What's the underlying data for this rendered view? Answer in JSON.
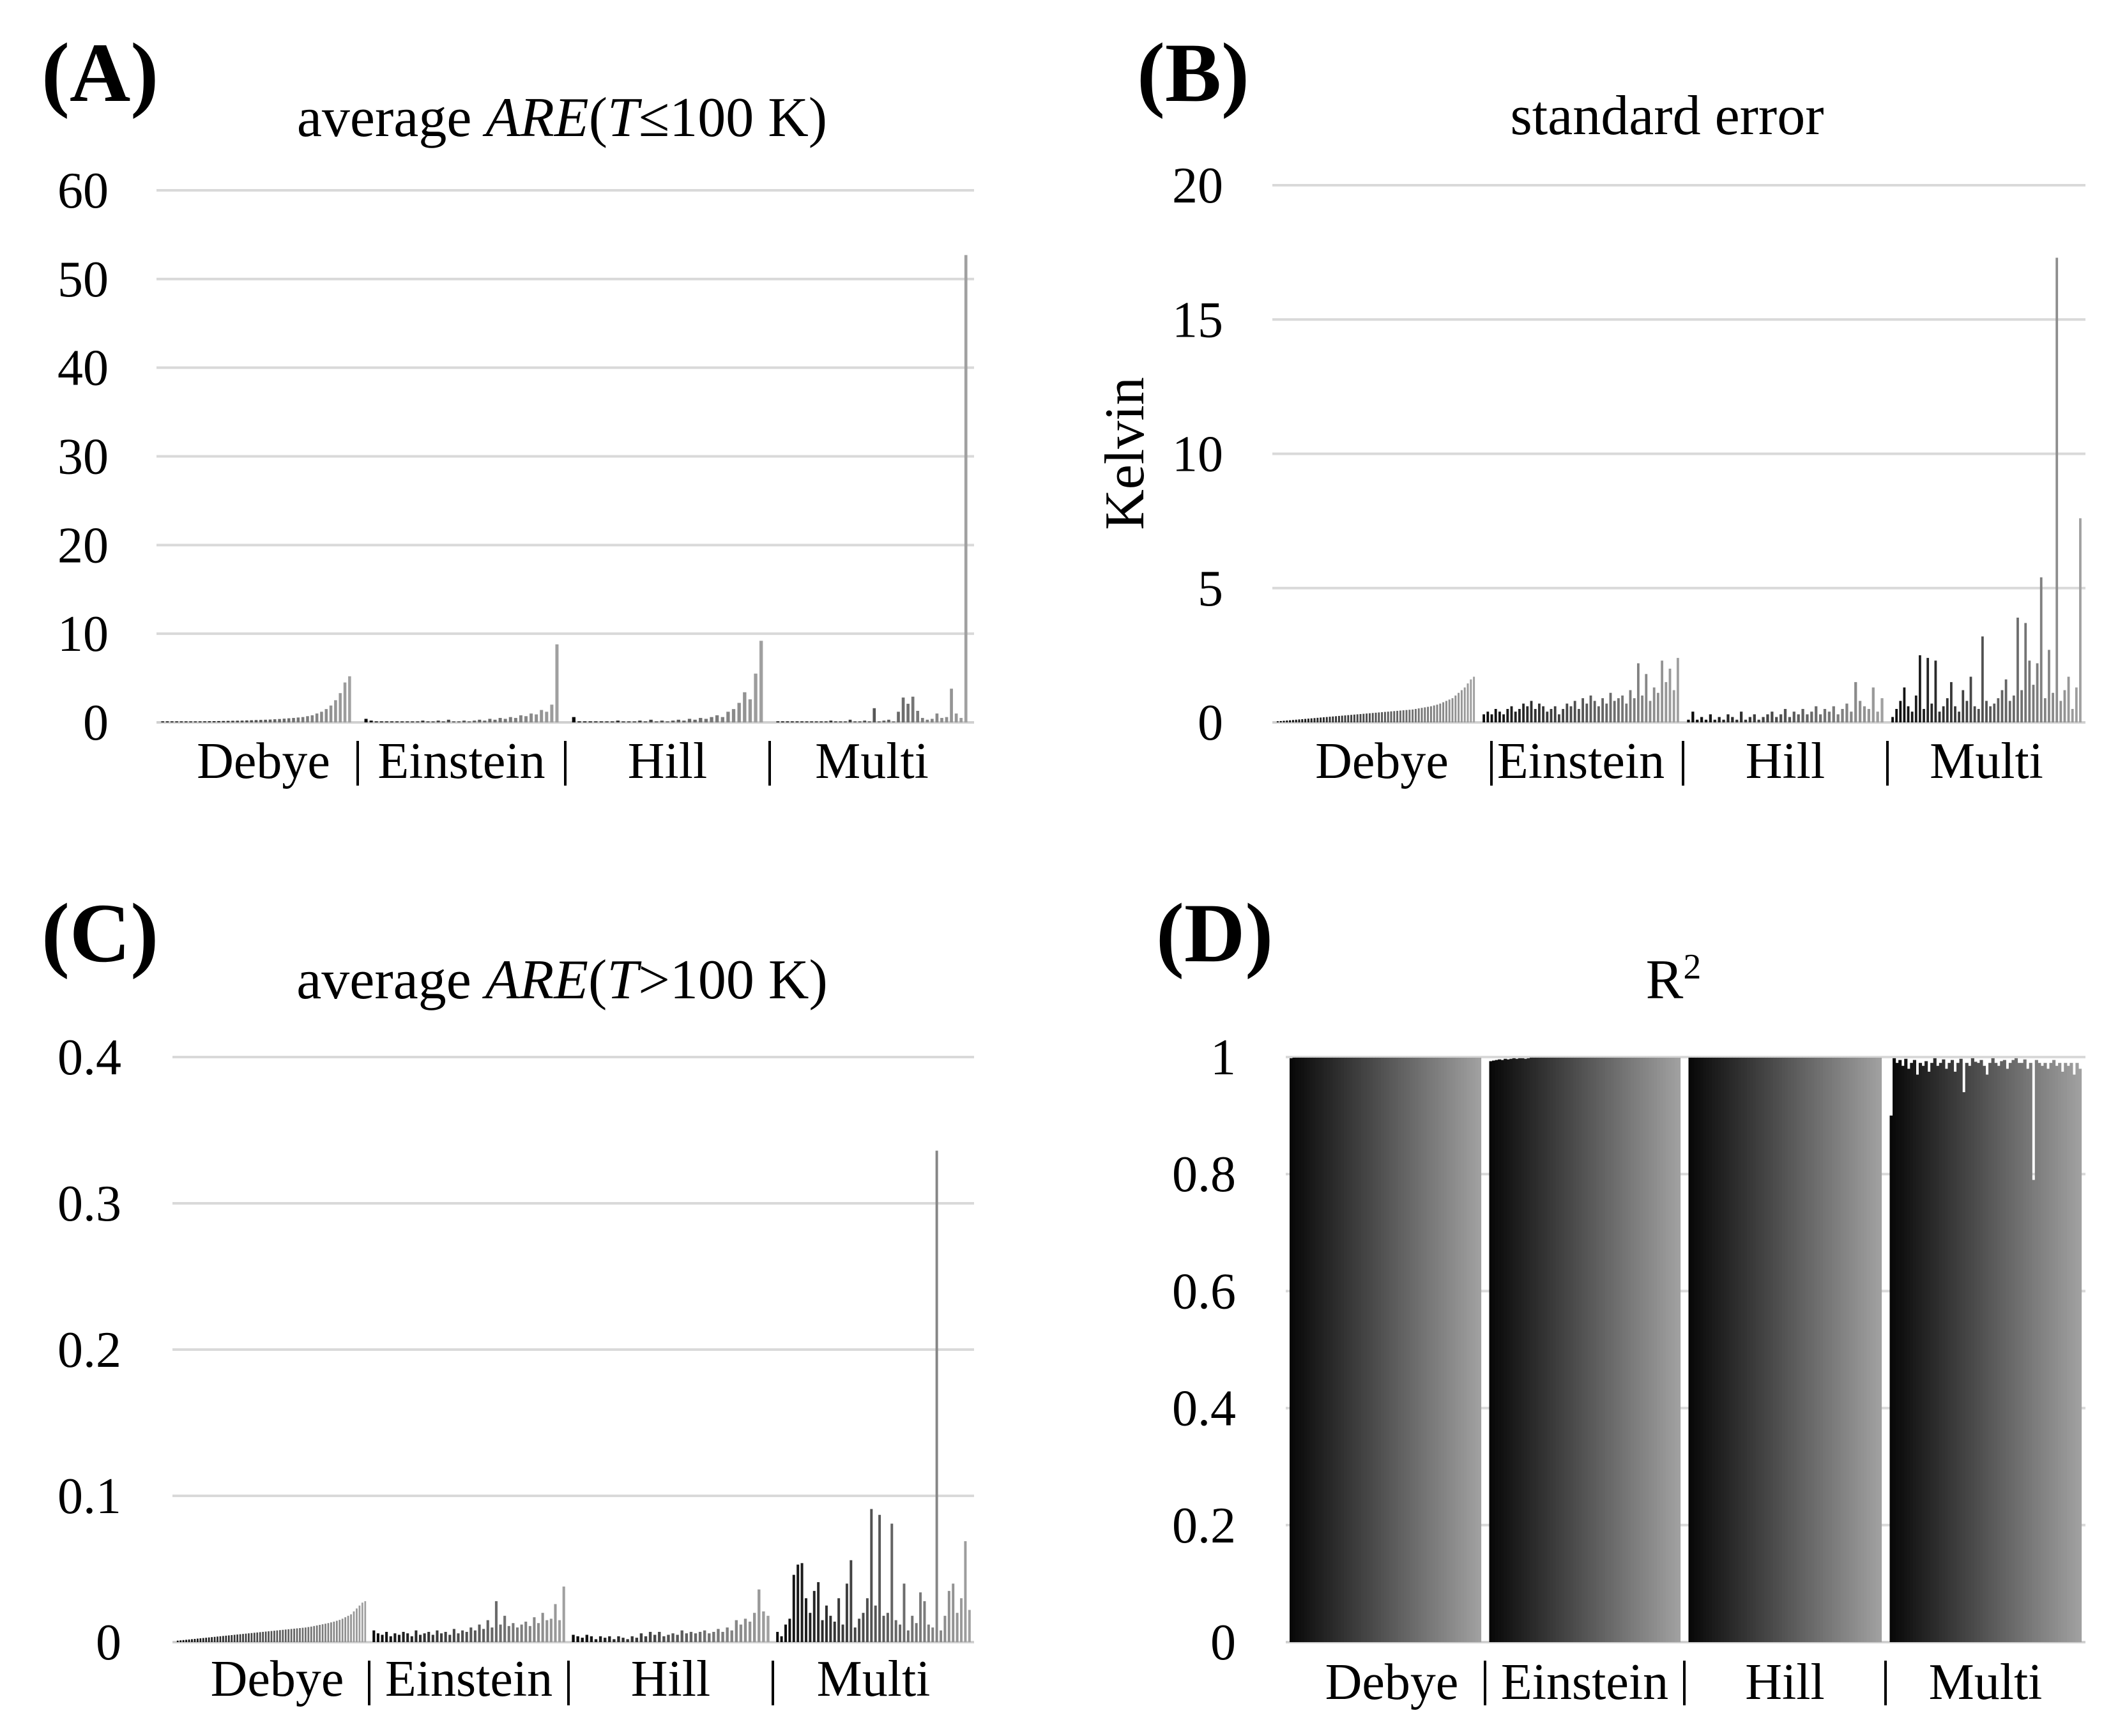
{
  "figure": {
    "panels": [
      {
        "id": "A",
        "letter": "(A)",
        "title_parts": [
          "average ",
          "ARE",
          "(",
          "T",
          "≤100 K)"
        ],
        "title_italic": [
          false,
          true,
          false,
          true,
          false
        ]
      },
      {
        "id": "B",
        "letter": "(B)",
        "title_parts": [
          "standard error"
        ],
        "title_italic": [
          false
        ],
        "ylabel": "Kelvin"
      },
      {
        "id": "C",
        "letter": "(C)",
        "title_parts": [
          "average ",
          "ARE",
          "(",
          "T",
          ">100 K)"
        ],
        "title_italic": [
          false,
          true,
          false,
          true,
          false
        ]
      },
      {
        "id": "D",
        "letter": "(D)",
        "title_parts": [
          "R",
          "2"
        ],
        "title_italic": [
          false,
          false
        ],
        "title_superscript_index": 1
      }
    ]
  },
  "chart_data": [
    {
      "panel": "A",
      "type": "bar",
      "title": "average ARE(T≤100 K)",
      "xlabel": "",
      "ylabel": "",
      "ylim": [
        0,
        60
      ],
      "yticks": [
        0,
        10,
        20,
        30,
        40,
        50,
        60
      ],
      "ytick_labels": [
        "0",
        "10",
        "20",
        "30",
        "40",
        "50",
        "60"
      ],
      "grid": true,
      "groups": [
        {
          "label": "Debye",
          "values": [
            0.03,
            0.04,
            0.05,
            0.06,
            0.07,
            0.08,
            0.09,
            0.1,
            0.11,
            0.12,
            0.13,
            0.14,
            0.15,
            0.16,
            0.17,
            0.18,
            0.19,
            0.2,
            0.22,
            0.24,
            0.26,
            0.28,
            0.3,
            0.32,
            0.35,
            0.38,
            0.42,
            0.46,
            0.5,
            0.55,
            0.6,
            0.7,
            0.8,
            1.0,
            1.2,
            1.5,
            1.9,
            2.5,
            3.3,
            4.5,
            5.2
          ]
        },
        {
          "label": "Einstein",
          "values": [
            0.4,
            0.2,
            0.1,
            0.1,
            0.05,
            0.05,
            0.1,
            0.05,
            0.1,
            0.05,
            0.1,
            0.2,
            0.1,
            0.05,
            0.2,
            0.1,
            0.3,
            0.1,
            0.05,
            0.2,
            0.1,
            0.2,
            0.3,
            0.2,
            0.4,
            0.3,
            0.5,
            0.4,
            0.6,
            0.5,
            0.8,
            0.7,
            1.0,
            0.9,
            1.4,
            1.2,
            2.0,
            8.8
          ]
        },
        {
          "label": "Hill",
          "values": [
            0.6,
            0.1,
            0.1,
            0.05,
            0.1,
            0.05,
            0.05,
            0.1,
            0.2,
            0.1,
            0.1,
            0.05,
            0.2,
            0.1,
            0.3,
            0.1,
            0.2,
            0.1,
            0.2,
            0.3,
            0.2,
            0.4,
            0.3,
            0.5,
            0.4,
            0.6,
            0.8,
            0.6,
            1.2,
            1.5,
            2.2,
            3.4,
            2.6,
            5.5,
            9.2
          ]
        },
        {
          "label": "Multi",
          "values": [
            0.1,
            0.1,
            0.05,
            0.1,
            0.05,
            0.05,
            0.1,
            0.1,
            0.05,
            0.1,
            0.1,
            0.2,
            0.1,
            0.05,
            0.1,
            0.3,
            0.1,
            0.1,
            0.2,
            0.1,
            1.6,
            0.1,
            0.2,
            0.3,
            0.1,
            1.2,
            2.8,
            2.1,
            2.9,
            1.3,
            0.5,
            0.3,
            0.4,
            1.0,
            0.5,
            0.6,
            3.8,
            1.0,
            0.5,
            52.7
          ]
        }
      ]
    },
    {
      "panel": "B",
      "type": "bar",
      "title": "standard error",
      "xlabel": "",
      "ylabel": "Kelvin",
      "ylim": [
        0,
        20
      ],
      "yticks": [
        0,
        5,
        10,
        15,
        20
      ],
      "ytick_labels": [
        "0",
        "5",
        "10",
        "15",
        "20"
      ],
      "grid": true,
      "groups": [
        {
          "label": "Debye",
          "values": [
            0.04,
            0.05,
            0.06,
            0.07,
            0.08,
            0.09,
            0.1,
            0.11,
            0.12,
            0.13,
            0.14,
            0.15,
            0.16,
            0.17,
            0.18,
            0.19,
            0.2,
            0.21,
            0.22,
            0.23,
            0.24,
            0.25,
            0.26,
            0.27,
            0.28,
            0.29,
            0.3,
            0.31,
            0.32,
            0.33,
            0.34,
            0.35,
            0.36,
            0.37,
            0.38,
            0.39,
            0.4,
            0.41,
            0.42,
            0.43,
            0.44,
            0.45,
            0.46,
            0.47,
            0.48,
            0.5,
            0.52,
            0.54,
            0.56,
            0.58,
            0.6,
            0.63,
            0.66,
            0.7,
            0.75,
            0.8,
            0.85,
            0.9,
            1.0,
            1.1,
            1.2,
            1.3,
            1.45,
            1.6,
            1.7
          ]
        },
        {
          "label": "Einstein",
          "values": [
            0.3,
            0.4,
            0.3,
            0.5,
            0.4,
            0.3,
            0.5,
            0.6,
            0.4,
            0.5,
            0.7,
            0.6,
            0.8,
            0.5,
            0.7,
            0.6,
            0.4,
            0.5,
            0.6,
            0.3,
            0.5,
            0.7,
            0.6,
            0.8,
            0.5,
            0.9,
            0.7,
            1.0,
            0.8,
            0.6,
            0.9,
            0.7,
            1.1,
            0.8,
            0.9,
            1.0,
            0.7,
            1.2,
            0.9,
            2.2,
            1.0,
            1.8,
            0.8,
            1.3,
            1.1,
            2.3,
            1.5,
            2.0,
            1.2,
            2.4
          ]
        },
        {
          "label": "Hill",
          "values": [
            0.1,
            0.4,
            0.1,
            0.2,
            0.1,
            0.3,
            0.1,
            0.2,
            0.1,
            0.3,
            0.2,
            0.1,
            0.4,
            0.1,
            0.2,
            0.3,
            0.1,
            0.2,
            0.3,
            0.4,
            0.2,
            0.3,
            0.5,
            0.2,
            0.4,
            0.3,
            0.5,
            0.3,
            0.4,
            0.6,
            0.3,
            0.5,
            0.4,
            0.6,
            0.3,
            0.5,
            0.7,
            0.4,
            1.5,
            0.8,
            0.6,
            0.5,
            1.3,
            0.4,
            0.9
          ]
        },
        {
          "label": "Multi",
          "values": [
            0.2,
            0.5,
            0.8,
            1.3,
            0.6,
            0.4,
            1.0,
            2.5,
            0.5,
            2.4,
            0.7,
            2.3,
            0.4,
            0.6,
            0.9,
            1.5,
            0.6,
            0.4,
            1.2,
            0.8,
            1.7,
            0.6,
            0.5,
            3.2,
            0.8,
            0.6,
            0.7,
            0.9,
            1.2,
            1.6,
            0.8,
            1.0,
            3.9,
            1.2,
            3.7,
            2.3,
            1.4,
            2.2,
            5.4,
            0.9,
            2.7,
            1.1,
            17.3,
            0.8,
            1.2,
            1.7,
            0.5,
            1.3,
            7.6
          ]
        }
      ]
    },
    {
      "panel": "C",
      "type": "bar",
      "title": "average ARE(T>100 K)",
      "xlabel": "",
      "ylabel": "",
      "ylim": [
        0,
        0.4
      ],
      "yticks": [
        0,
        0.1,
        0.2,
        0.3,
        0.4
      ],
      "ytick_labels": [
        "0",
        "0.1",
        "0.2",
        "0.3",
        "0.4"
      ],
      "grid": true,
      "groups": [
        {
          "label": "Debye",
          "values": [
            0.001,
            0.0012,
            0.0014,
            0.0016,
            0.0018,
            0.002,
            0.0022,
            0.0024,
            0.0026,
            0.0028,
            0.003,
            0.0032,
            0.0034,
            0.0036,
            0.0038,
            0.004,
            0.0042,
            0.0044,
            0.0046,
            0.0048,
            0.005,
            0.0052,
            0.0054,
            0.0056,
            0.0058,
            0.006,
            0.0062,
            0.0064,
            0.0066,
            0.0068,
            0.007,
            0.0072,
            0.0074,
            0.0076,
            0.0078,
            0.008,
            0.0082,
            0.0084,
            0.0086,
            0.0088,
            0.009,
            0.0092,
            0.0094,
            0.0096,
            0.0098,
            0.01,
            0.0103,
            0.0106,
            0.011,
            0.0114,
            0.0118,
            0.0122,
            0.0126,
            0.013,
            0.0135,
            0.014,
            0.0146,
            0.0152,
            0.016,
            0.017,
            0.018,
            0.019,
            0.021,
            0.023,
            0.025,
            0.027,
            0.028
          ]
        },
        {
          "label": "Einstein",
          "values": [
            0.008,
            0.006,
            0.005,
            0.007,
            0.004,
            0.006,
            0.005,
            0.007,
            0.006,
            0.004,
            0.008,
            0.005,
            0.006,
            0.007,
            0.005,
            0.008,
            0.006,
            0.007,
            0.005,
            0.009,
            0.006,
            0.008,
            0.007,
            0.01,
            0.008,
            0.012,
            0.009,
            0.015,
            0.01,
            0.028,
            0.012,
            0.018,
            0.011,
            0.013,
            0.01,
            0.012,
            0.014,
            0.011,
            0.017,
            0.013,
            0.02,
            0.015,
            0.016,
            0.026,
            0.015,
            0.038
          ]
        },
        {
          "label": "Hill",
          "values": [
            0.005,
            0.004,
            0.003,
            0.005,
            0.004,
            0.002,
            0.004,
            0.003,
            0.004,
            0.002,
            0.004,
            0.003,
            0.002,
            0.004,
            0.003,
            0.006,
            0.004,
            0.007,
            0.005,
            0.007,
            0.004,
            0.005,
            0.006,
            0.005,
            0.008,
            0.006,
            0.007,
            0.006,
            0.007,
            0.008,
            0.006,
            0.007,
            0.009,
            0.007,
            0.01,
            0.008,
            0.015,
            0.012,
            0.016,
            0.014,
            0.02,
            0.036,
            0.021,
            0.018
          ]
        },
        {
          "label": "Multi",
          "values": [
            0.007,
            0.004,
            0.012,
            0.016,
            0.046,
            0.053,
            0.054,
            0.03,
            0.02,
            0.035,
            0.041,
            0.015,
            0.025,
            0.018,
            0.014,
            0.03,
            0.012,
            0.04,
            0.056,
            0.01,
            0.016,
            0.02,
            0.03,
            0.091,
            0.025,
            0.087,
            0.018,
            0.02,
            0.081,
            0.015,
            0.012,
            0.04,
            0.008,
            0.018,
            0.013,
            0.034,
            0.028,
            0.012,
            0.01,
            0.336,
            0.008,
            0.018,
            0.035,
            0.04,
            0.02,
            0.03,
            0.069,
            0.022
          ]
        }
      ]
    },
    {
      "panel": "D",
      "type": "bar",
      "title": "R²",
      "xlabel": "",
      "ylabel": "",
      "ylim": [
        0,
        1
      ],
      "yticks": [
        0,
        0.2,
        0.4,
        0.6,
        0.8,
        1
      ],
      "ytick_labels": [
        "0",
        "0.2",
        "0.4",
        "0.6",
        "0.8",
        "1"
      ],
      "grid": true,
      "groups": [
        {
          "label": "Debye",
          "n": 67,
          "values": [
            0.998
          ],
          "default": 0.999
        },
        {
          "label": "Einstein",
          "n": 66,
          "values": [
            0.993,
            0.994,
            0.995,
            0.996,
            0.995,
            0.997,
            0.996,
            0.997,
            0.998,
            0.997,
            0.998,
            0.998,
            0.997,
            0.998,
            0.999
          ],
          "default": 0.999
        },
        {
          "label": "Hill",
          "n": 66,
          "values": [],
          "default": 0.999
        },
        {
          "label": "Multi",
          "n": 66,
          "values": [
            0.9,
            0.998,
            0.99,
            0.995,
            0.985,
            0.997,
            0.98,
            0.99,
            0.995,
            0.97,
            0.99,
            0.985,
            0.993,
            0.975,
            0.99,
            0.998,
            0.985,
            0.99,
            0.996,
            0.98,
            0.99,
            0.995,
            0.975,
            0.99,
            0.997,
            0.94,
            0.99,
            0.985,
            0.998,
            0.992,
            0.99,
            0.995,
            0.985,
            0.97,
            0.99,
            0.998,
            0.99,
            0.985,
            0.993,
            0.995,
            0.98,
            0.99,
            0.995,
            0.998,
            0.99,
            0.99,
            0.996,
            0.98,
            0.99,
            0.79,
            0.995,
            0.99,
            0.985,
            0.99,
            0.98,
            0.99,
            0.995,
            0.985,
            0.99,
            0.975,
            0.99,
            0.985,
            0.99,
            0.97,
            0.99,
            0.98
          ],
          "default": 0.99
        }
      ]
    }
  ]
}
